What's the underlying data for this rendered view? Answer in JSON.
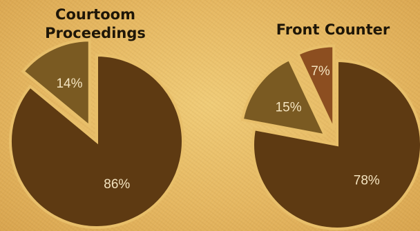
{
  "chart_data": [
    {
      "type": "pie",
      "title": "Courtoom Proceedings",
      "categories": [
        "",
        ""
      ],
      "values": [
        86,
        14
      ],
      "value_labels": [
        "86%",
        "14%"
      ],
      "colors": [
        "#5e3a12",
        "#7a5a22"
      ],
      "exploded": [
        false,
        true
      ]
    },
    {
      "type": "pie",
      "title": "Front Counter",
      "categories": [
        "",
        "",
        ""
      ],
      "values": [
        78,
        15,
        7
      ],
      "value_labels": [
        "78%",
        "15%",
        "7%"
      ],
      "colors": [
        "#5e3a12",
        "#7a5a22",
        "#8c4e20"
      ],
      "exploded": [
        false,
        true,
        true
      ]
    }
  ],
  "style": {
    "slice_border": "#e8bf6a"
  }
}
